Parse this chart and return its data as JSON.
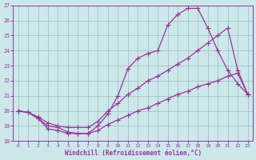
{
  "xlabel": "Windchill (Refroidissement éolien,°C)",
  "xlim": [
    -0.5,
    23.5
  ],
  "ylim": [
    18,
    27
  ],
  "xticks": [
    0,
    1,
    2,
    3,
    4,
    5,
    6,
    7,
    8,
    9,
    10,
    11,
    12,
    13,
    14,
    15,
    16,
    17,
    18,
    19,
    20,
    21,
    22,
    23
  ],
  "yticks": [
    18,
    19,
    20,
    21,
    22,
    23,
    24,
    25,
    26,
    27
  ],
  "bg_color": "#cce8ea",
  "line_color": "#993399",
  "grid_color": "#99bbbb",
  "line1_x": [
    0,
    1,
    2,
    3,
    4,
    5,
    6,
    7,
    8,
    9,
    10,
    11,
    12,
    13,
    14,
    15,
    16,
    17,
    18,
    19,
    20,
    21,
    22,
    23
  ],
  "line1_y": [
    20.0,
    19.9,
    19.5,
    18.8,
    18.7,
    18.5,
    18.5,
    18.5,
    19.0,
    19.8,
    21.0,
    22.8,
    23.5,
    23.8,
    24.0,
    25.7,
    26.4,
    26.8,
    26.8,
    25.5,
    24.0,
    22.7,
    21.8,
    21.1
  ],
  "line2_x": [
    0,
    1,
    2,
    3,
    4,
    5,
    6,
    7,
    8,
    9,
    10,
    11,
    12,
    13,
    14,
    15,
    16,
    17,
    18,
    19,
    20,
    21,
    22,
    23
  ],
  "line2_y": [
    20.0,
    19.9,
    19.6,
    19.2,
    19.0,
    18.9,
    18.9,
    18.9,
    19.3,
    20.0,
    20.5,
    21.1,
    21.5,
    22.0,
    22.3,
    22.7,
    23.1,
    23.5,
    24.0,
    24.5,
    25.0,
    25.5,
    22.7,
    21.1
  ],
  "line3_x": [
    0,
    1,
    2,
    3,
    4,
    5,
    6,
    7,
    8,
    9,
    10,
    11,
    12,
    13,
    14,
    15,
    16,
    17,
    18,
    19,
    20,
    21,
    22,
    23
  ],
  "line3_y": [
    20.0,
    19.9,
    19.5,
    19.0,
    18.9,
    18.6,
    18.5,
    18.5,
    18.7,
    19.1,
    19.4,
    19.7,
    20.0,
    20.2,
    20.5,
    20.8,
    21.1,
    21.3,
    21.6,
    21.8,
    22.0,
    22.3,
    22.5,
    21.1
  ],
  "marker": "+",
  "markersize": 4,
  "linewidth": 0.9
}
